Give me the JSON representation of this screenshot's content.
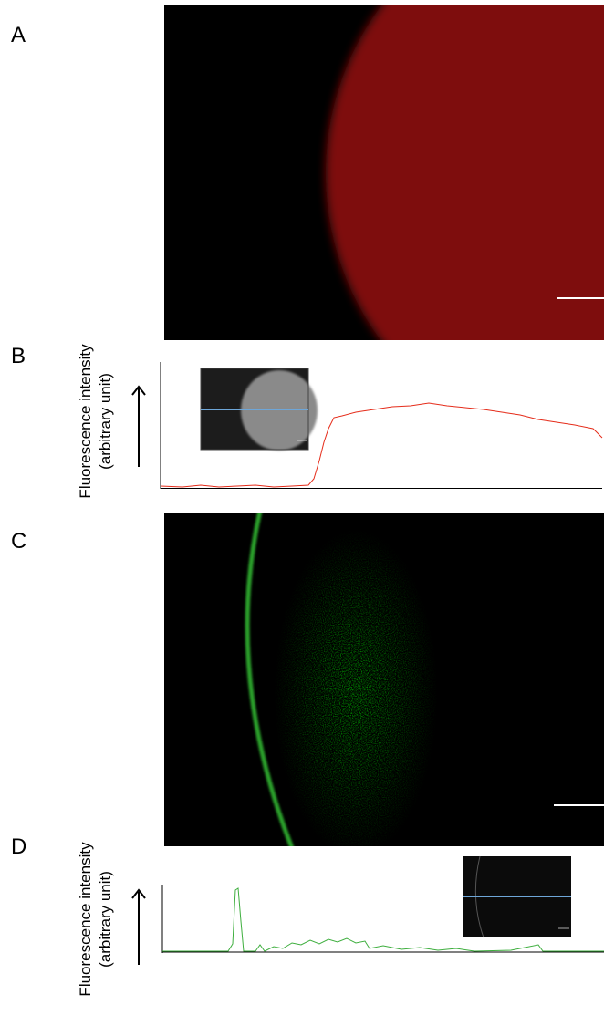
{
  "panels": [
    {
      "label": "A"
    },
    {
      "label": "B",
      "y_axis_label": [
        "Fluorescence intensity",
        "(arbitrary unit)"
      ]
    },
    {
      "label": "C"
    },
    {
      "label": "D",
      "y_axis_label": [
        "Fluorescence intensity",
        "(arbitrary unit)"
      ]
    }
  ]
}
